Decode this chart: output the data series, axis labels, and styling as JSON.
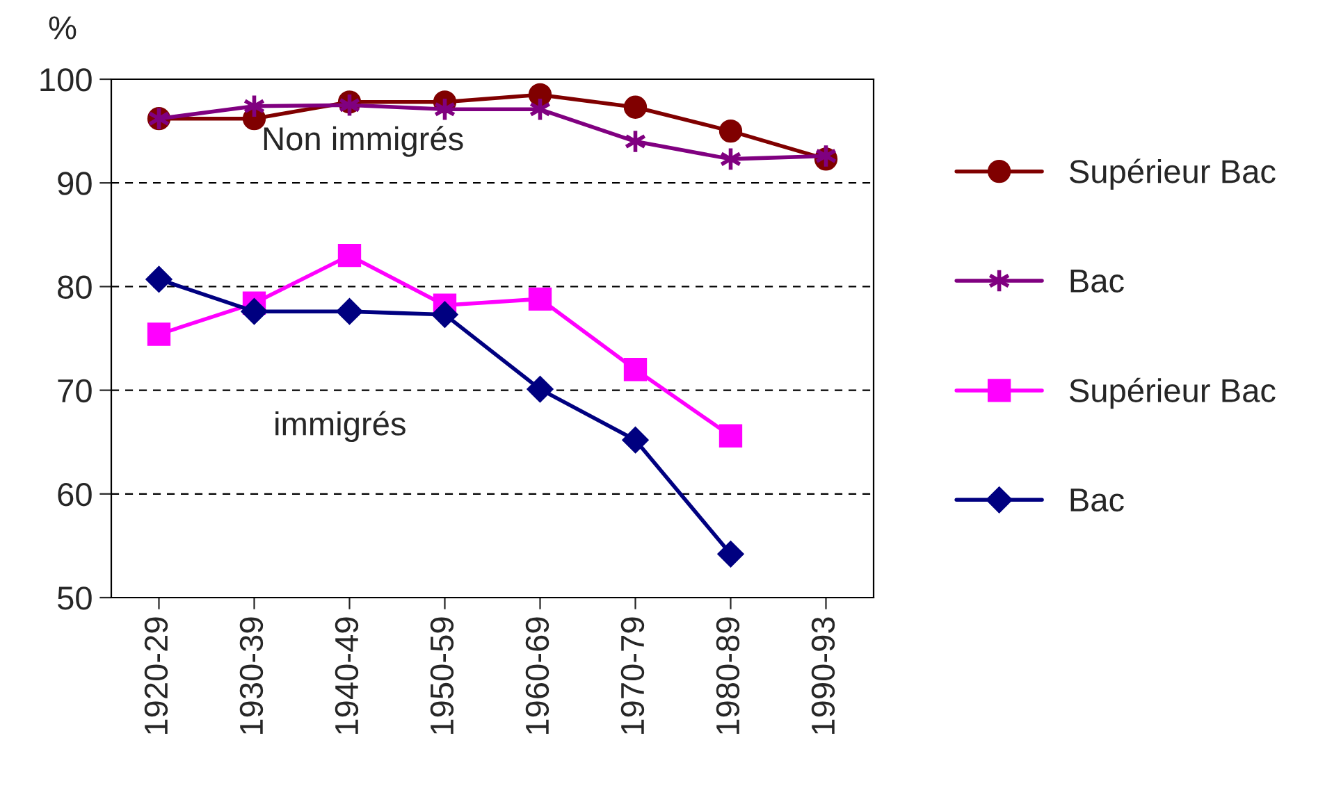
{
  "chart_data": {
    "type": "line",
    "ylabel": "%",
    "categories": [
      "1920-29",
      "1930-39",
      "1940-49",
      "1950-59",
      "1960-69",
      "1970-79",
      "1980-89",
      "1990-93"
    ],
    "series": [
      {
        "name": "Supérieur Bac",
        "color": "#800000",
        "marker": "circle",
        "values": [
          96.2,
          96.2,
          97.8,
          97.8,
          98.5,
          97.3,
          95.0,
          92.3
        ]
      },
      {
        "name": "Bac",
        "color": "#800080",
        "marker": "cross",
        "values": [
          96.2,
          97.4,
          97.5,
          97.1,
          97.1,
          94.0,
          92.3,
          92.6
        ]
      },
      {
        "name": "Supérieur Bac",
        "color": "#ff00ff",
        "marker": "square",
        "values": [
          75.4,
          78.4,
          83.0,
          78.2,
          78.8,
          72.0,
          65.6,
          null
        ]
      },
      {
        "name": "Bac",
        "color": "#000080",
        "marker": "diamond",
        "values": [
          80.7,
          77.6,
          77.6,
          77.3,
          70.1,
          65.2,
          54.2,
          null
        ]
      }
    ],
    "ylim": [
      50,
      100
    ],
    "yticks": [
      50,
      60,
      70,
      80,
      90,
      100
    ],
    "grid": "y",
    "line_style": "solid",
    "legend": "right",
    "annotations": [
      "Non immigrés",
      "immigrés"
    ]
  }
}
